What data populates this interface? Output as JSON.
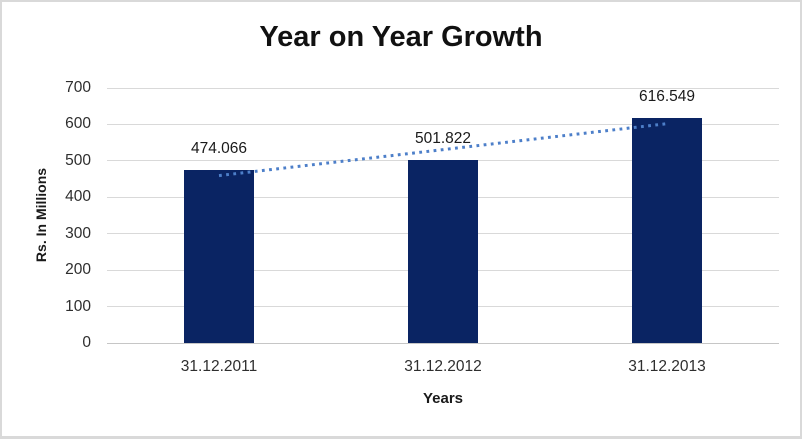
{
  "chart_data": {
    "type": "bar",
    "title": "Year on Year Growth",
    "xlabel": "Years",
    "ylabel": "Rs. In Millions",
    "categories": [
      "31.12.2011",
      "31.12.2012",
      "31.12.2013"
    ],
    "values": [
      474.066,
      501.822,
      616.549
    ],
    "data_labels": [
      "474.066",
      "501.822",
      "616.549"
    ],
    "yticks": [
      0,
      100,
      200,
      300,
      400,
      500,
      600,
      700
    ],
    "ylim": [
      0,
      700
    ],
    "grid": true,
    "legend": "none",
    "trendline": {
      "type": "linear",
      "style": "dotted"
    },
    "colors": {
      "bar": "#0a2463",
      "trendline": "#4d7fc9",
      "gridline": "#d9d9d9",
      "axis_line": "#c6c6c6",
      "title_text": "#111111",
      "tick_text": "#2e2e2e",
      "frame_border": "#d9d9d9",
      "background": "#ffffff"
    }
  }
}
